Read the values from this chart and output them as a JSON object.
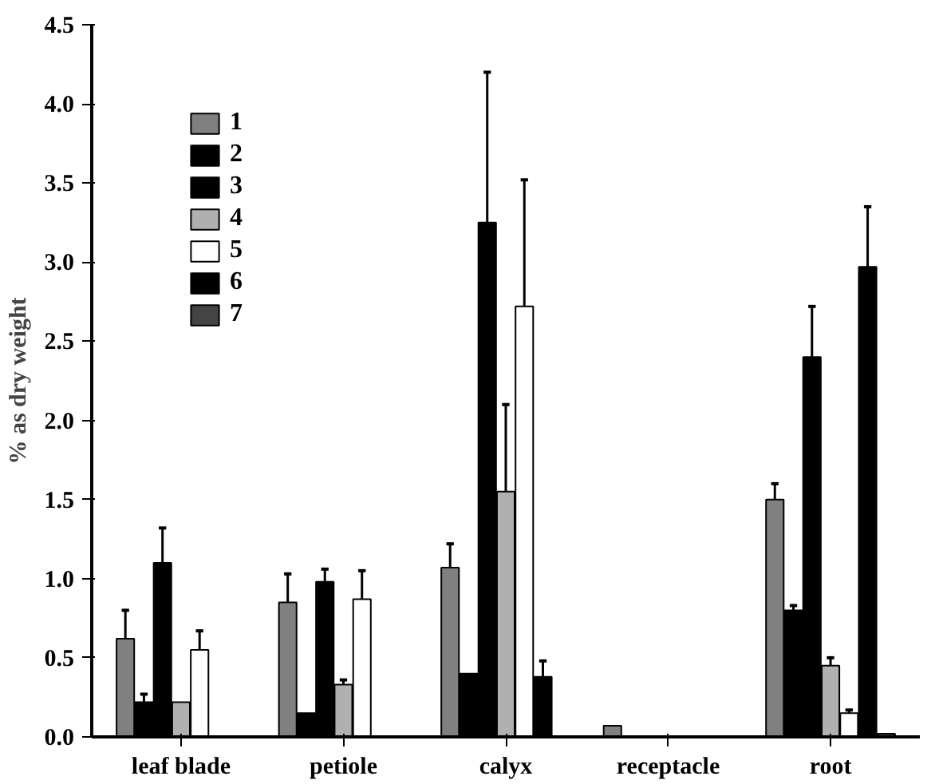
{
  "chart_data": {
    "type": "bar",
    "ylabel": "% as dry weight",
    "categories": [
      "leaf blade",
      "petiole",
      "calyx",
      "receptacle",
      "root"
    ],
    "series": [
      {
        "name": "1",
        "color": "#808080",
        "values": [
          0.62,
          0.85,
          1.07,
          0.07,
          1.5
        ],
        "errors": [
          0.18,
          0.18,
          0.15,
          null,
          0.1
        ]
      },
      {
        "name": "2",
        "color": "#000000",
        "values": [
          0.22,
          0.15,
          0.4,
          null,
          0.8
        ],
        "errors": [
          0.05,
          null,
          null,
          null,
          0.03
        ]
      },
      {
        "name": "3",
        "color": "#000000",
        "values": [
          1.1,
          0.98,
          3.25,
          null,
          2.4
        ],
        "errors": [
          0.22,
          0.08,
          0.95,
          null,
          0.32
        ]
      },
      {
        "name": "4",
        "color": "#b0b0b0",
        "values": [
          0.22,
          0.33,
          1.55,
          null,
          0.45
        ],
        "errors": [
          null,
          0.03,
          0.55,
          null,
          0.05
        ]
      },
      {
        "name": "5",
        "color": "#ffffff",
        "values": [
          0.55,
          0.87,
          2.72,
          null,
          0.15
        ],
        "errors": [
          0.12,
          0.18,
          0.8,
          null,
          0.02
        ]
      },
      {
        "name": "6",
        "color": "#000000",
        "values": [
          null,
          null,
          0.38,
          null,
          2.97
        ],
        "errors": [
          null,
          null,
          0.1,
          null,
          0.38
        ]
      },
      {
        "name": "7",
        "color": "#444444",
        "values": [
          null,
          null,
          null,
          null,
          0.02
        ],
        "errors": [
          null,
          null,
          null,
          null,
          null
        ]
      }
    ],
    "ylim": [
      0,
      4.5
    ],
    "yticks": [
      {
        "value": 0,
        "label": "0.0"
      },
      {
        "value": 0.5,
        "label": "0.5"
      },
      {
        "value": 1,
        "label": "1.0"
      },
      {
        "value": 1.5,
        "label": "1.5"
      },
      {
        "value": 2,
        "label": "2.0"
      },
      {
        "value": 2.5,
        "label": "2.5"
      },
      {
        "value": 3,
        "label": "3.0"
      },
      {
        "value": 3.5,
        "label": "3.5"
      },
      {
        "value": 4,
        "label": "4.0"
      },
      {
        "value": 4.5,
        "label": "4.5"
      }
    ],
    "grid": false,
    "legend": "top left"
  }
}
